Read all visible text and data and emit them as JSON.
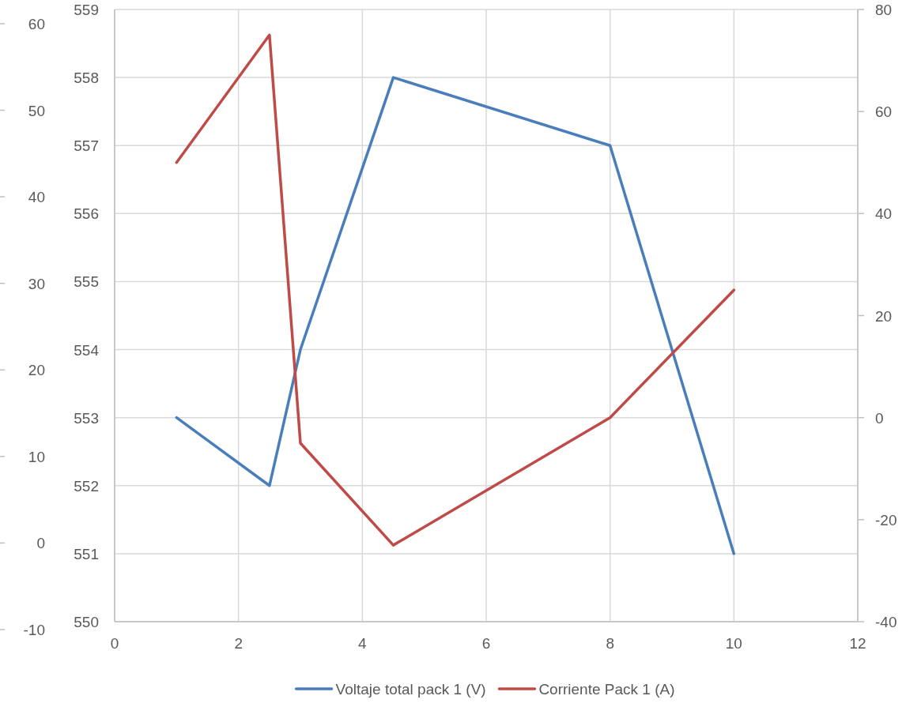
{
  "chart_data": {
    "type": "line",
    "x": [
      1,
      2.5,
      3,
      4.5,
      8,
      10
    ],
    "series": [
      {
        "name": "Voltaje total pack 1 (V)",
        "color": "#4a7ebb",
        "values": [
          553,
          552,
          554,
          558,
          557,
          551
        ]
      },
      {
        "name": "Corriente Pack 1 (A)",
        "color": "#be4b48",
        "values": [
          50,
          75,
          -5,
          -25,
          0,
          25
        ],
        "axis": "y2"
      }
    ],
    "xlim": [
      0,
      12
    ],
    "xticks": [
      0,
      2,
      4,
      6,
      8,
      10,
      12
    ],
    "ylim": [
      550,
      559
    ],
    "yticks": [
      550,
      551,
      552,
      553,
      554,
      555,
      556,
      557,
      558,
      559
    ],
    "y2lim": [
      -40,
      80
    ],
    "y2ticks": [
      -40,
      -20,
      0,
      20,
      40,
      60,
      80
    ],
    "y3lim": [
      -10,
      60
    ],
    "y3ticks": [
      -10,
      0,
      10,
      20,
      30,
      40,
      50,
      60
    ],
    "grid": true,
    "legend": "bottom",
    "marker": "none",
    "line_style": "solid"
  }
}
